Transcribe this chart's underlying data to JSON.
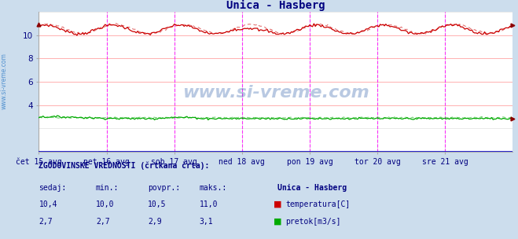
{
  "title": "Unica - Hasberg",
  "title_color": "#000080",
  "bg_color": "#ccdded",
  "plot_bg_color": "#ffffff",
  "grid_pink": "#ffb0b0",
  "grid_gray": "#d8d8d8",
  "xlim": [
    0,
    336
  ],
  "ylim": [
    0,
    12
  ],
  "yticks": [
    4,
    6,
    8,
    10
  ],
  "xtick_labels": [
    "čet 15 avg",
    "pet 16 avg",
    "sob 17 avg",
    "ned 18 avg",
    "pon 19 avg",
    "tor 20 avg",
    "sre 21 avg"
  ],
  "xtick_positions": [
    0,
    48,
    96,
    144,
    192,
    240,
    288
  ],
  "day_line_positions": [
    48,
    96,
    144,
    192,
    240,
    288
  ],
  "temp_color": "#cc0000",
  "flow_color": "#00aa00",
  "watermark": "www.si-vreme.com",
  "watermark_color": "#1a4fa0",
  "watermark_alpha": 0.3,
  "sidebar_text": "www.si-vreme.com",
  "sidebar_color": "#4488cc",
  "temp_base": 10.5,
  "temp_amplitude": 0.38,
  "flow_base": 2.85,
  "legend_title": "Unica - Hasberg",
  "legend_labels": [
    "temperatura[C]",
    "pretok[m3/s]"
  ],
  "legend_colors": [
    "#cc0000",
    "#00aa00"
  ],
  "stats_header": "ZGODOVINSKE VREDNOSTI (črtkana črta):",
  "stats_cols": [
    "sedaj:",
    "min.:",
    "povpr.:",
    "maks.:"
  ],
  "stats_temp": [
    "10,4",
    "10,0",
    "10,5",
    "11,0"
  ],
  "stats_flow": [
    "2,7",
    "2,7",
    "2,9",
    "3,1"
  ],
  "stats_color": "#000080"
}
